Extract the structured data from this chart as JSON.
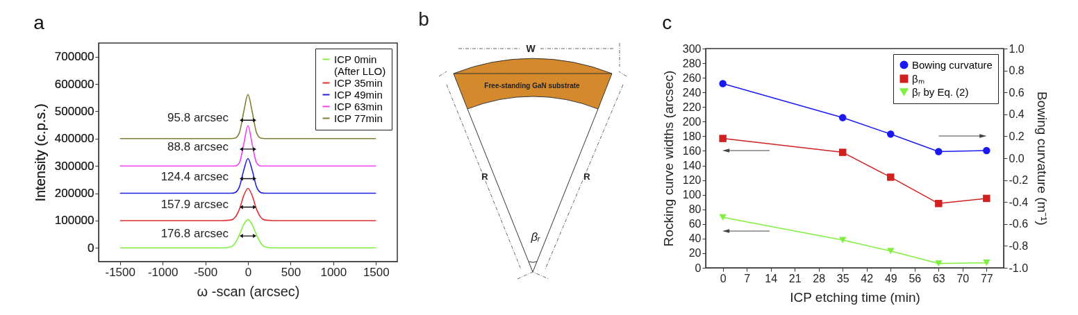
{
  "chart_data": [
    {
      "type": "line",
      "title": "a",
      "xlabel": "ω -scan (arcsec)",
      "ylabel": "Intensity (c.p.s.)",
      "x": [
        -1500,
        -300,
        -200,
        -150,
        -100,
        -50,
        0,
        50,
        100,
        150,
        200,
        300,
        1500
      ],
      "xlim": [
        -1750,
        1750
      ],
      "xticks": [
        -1500,
        -1000,
        -500,
        0,
        500,
        1000,
        1500
      ],
      "ylim": [
        -50000,
        750000
      ],
      "yticks": [
        0,
        100000,
        200000,
        300000,
        400000,
        500000,
        600000,
        700000
      ],
      "legend": "top right",
      "series": [
        {
          "name": "ICP 0min\n(After LLO)",
          "color": "#80f040",
          "values": [
            0,
            0,
            4000,
            18000,
            48000,
            85000,
            104000,
            85000,
            48000,
            18000,
            4000,
            0,
            0
          ]
        },
        {
          "name": "ICP 35min",
          "color": "#e03030",
          "values": [
            100000,
            100000,
            102000,
            112000,
            142000,
            191000,
            218000,
            191000,
            142000,
            112000,
            102000,
            100000,
            100000
          ]
        },
        {
          "name": "ICP 49min",
          "color": "#2020e0",
          "values": [
            200000,
            200000,
            200000,
            203000,
            224000,
            284000,
            327000,
            284000,
            224000,
            203000,
            200000,
            200000,
            200000
          ]
        },
        {
          "name": "ICP 63min",
          "color": "#f040f0",
          "values": [
            300000,
            300000,
            300000,
            300000,
            312000,
            379000,
            447000,
            379000,
            312000,
            300000,
            300000,
            300000,
            300000
          ]
        },
        {
          "name": "ICP 77min",
          "color": "#808030",
          "values": [
            400000,
            400000,
            400000,
            402000,
            422000,
            498000,
            561000,
            498000,
            422000,
            402000,
            400000,
            400000,
            400000
          ]
        }
      ],
      "annotations": [
        "176.8 arcsec",
        "157.9 arcsec",
        "124.4 arcsec",
        "88.8 arcsec",
        "95.8 arcsec"
      ]
    },
    {
      "type": "other",
      "title": "b",
      "annotations": [
        "W",
        "Free-standing GaN substrate",
        "R",
        "R",
        "βᵣ"
      ]
    },
    {
      "type": "line",
      "title": "c",
      "xlabel": "ICP etching time (min)",
      "ylabel": "Rocking curve widths (arcsec)",
      "y2label": "Bowing curvature (m⁻¹)",
      "x": [
        0,
        35,
        49,
        63,
        77
      ],
      "xlim": [
        -5,
        82
      ],
      "xticks": [
        0,
        7,
        14,
        21,
        28,
        35,
        42,
        49,
        56,
        63,
        70,
        77
      ],
      "ylim": [
        0,
        300
      ],
      "yticks": [
        0,
        20,
        40,
        60,
        80,
        100,
        120,
        140,
        160,
        180,
        200,
        220,
        240,
        260,
        280,
        300
      ],
      "y2lim": [
        -1,
        1
      ],
      "y2ticks": [
        {
          "value": -1,
          "label": "-1.0"
        },
        -0.8,
        -0.6,
        -0.4,
        -0.2,
        {
          "value": 0,
          "label": "0.0"
        },
        0.2,
        0.4,
        0.6,
        0.8,
        {
          "value": 1,
          "label": "1.0"
        }
      ],
      "legend": "top right",
      "series": [
        {
          "name": "Bowing curvature",
          "color": "#1a1af0",
          "axis": "y2",
          "marker": "circle",
          "values": [
            0.68,
            0.37,
            0.22,
            0.06,
            0.07
          ]
        },
        {
          "name": "βₘ",
          "color": "#d02020",
          "marker": "square",
          "values": [
            177,
            158,
            124,
            88,
            95
          ]
        },
        {
          "name": "βᵣ by Eq. (2)",
          "color": "#80f040",
          "marker": "triangle",
          "values": [
            69,
            38,
            23,
            6,
            7
          ]
        }
      ]
    }
  ]
}
